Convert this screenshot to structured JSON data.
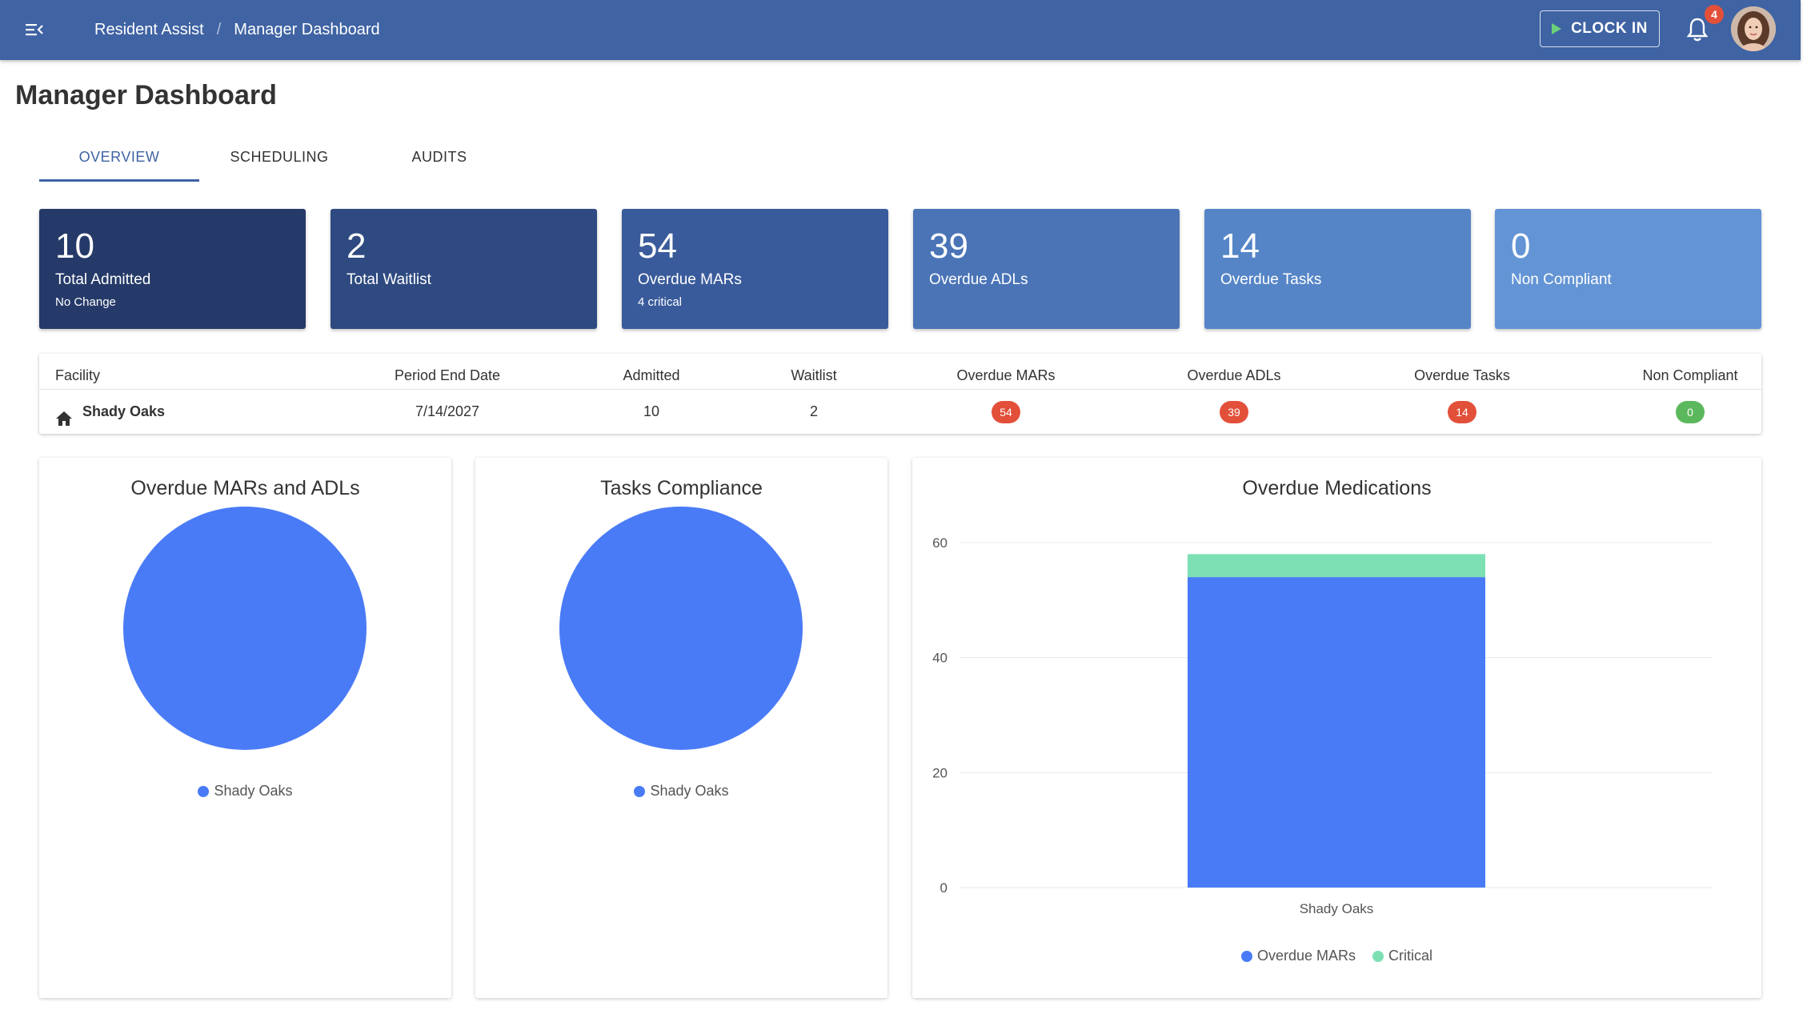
{
  "header": {
    "breadcrumb": [
      "Resident Assist",
      "Manager Dashboard"
    ],
    "separator": "/",
    "clock_in_label": "CLOCK IN",
    "notification_count": "4",
    "colors": {
      "bar": "#3f63a3"
    },
    "icons": {
      "menu": "menu-collapse-icon",
      "clock_in": "play-icon",
      "notifications": "bell-icon"
    }
  },
  "page": {
    "title": "Manager Dashboard",
    "tabs": [
      {
        "label": "OVERVIEW",
        "active": true
      },
      {
        "label": "SCHEDULING",
        "active": false
      },
      {
        "label": "AUDITS",
        "active": false
      }
    ]
  },
  "stats": [
    {
      "value": "10",
      "label": "Total Admitted",
      "sub": "No Change",
      "color": "#253a68"
    },
    {
      "value": "2",
      "label": "Total Waitlist",
      "sub": "",
      "color": "#2e4a80"
    },
    {
      "value": "54",
      "label": "Overdue MARs",
      "sub": "4 critical",
      "color": "#3a5b9b"
    },
    {
      "value": "39",
      "label": "Overdue ADLs",
      "sub": "",
      "color": "#4a74b6"
    },
    {
      "value": "14",
      "label": "Overdue Tasks",
      "sub": "",
      "color": "#5585c7"
    },
    {
      "value": "0",
      "label": "Non Compliant",
      "sub": "",
      "color": "#6394d5"
    }
  ],
  "facility_table": {
    "columns": [
      "Facility",
      "Period End Date",
      "Admitted",
      "Waitlist",
      "Overdue MARs",
      "Overdue ADLs",
      "Overdue Tasks",
      "Non Compliant"
    ],
    "rows": [
      {
        "facility": "Shady Oaks",
        "period_end_date": "7/14/2027",
        "admitted": "10",
        "waitlist": "2",
        "overdue_mars": "54",
        "overdue_adls": "39",
        "overdue_tasks": "14",
        "non_compliant": "0"
      }
    ],
    "badge_colors": {
      "alert": "#e2503a",
      "ok": "#5cb85c"
    },
    "icons": {
      "facility": "home-icon"
    }
  },
  "charts": {
    "mars_adls": {
      "title": "Overdue MARs and ADLs",
      "legend": [
        "Shady Oaks"
      ],
      "color": "#4a7bf7"
    },
    "tasks": {
      "title": "Tasks Compliance",
      "legend": [
        "Shady Oaks"
      ],
      "color": "#4a7bf7"
    },
    "medications": {
      "title": "Overdue Medications"
    }
  },
  "chart_data": [
    {
      "type": "pie",
      "title": "Overdue MARs and ADLs",
      "categories": [
        "Shady Oaks"
      ],
      "values": [
        1
      ],
      "legend": "bottom"
    },
    {
      "type": "pie",
      "title": "Tasks Compliance",
      "categories": [
        "Shady Oaks"
      ],
      "values": [
        1
      ],
      "legend": "bottom"
    },
    {
      "type": "bar",
      "stacked": true,
      "title": "Overdue Medications",
      "categories": [
        "Shady Oaks"
      ],
      "series": [
        {
          "name": "Overdue MARs",
          "values": [
            54
          ],
          "color": "#4a7bf7"
        },
        {
          "name": "Critical",
          "values": [
            4
          ],
          "color": "#7de0b5"
        }
      ],
      "yticks": [
        "0",
        "20",
        "40",
        "60"
      ],
      "ylim": [
        0,
        60
      ],
      "grid": true,
      "legend": "bottom"
    }
  ]
}
